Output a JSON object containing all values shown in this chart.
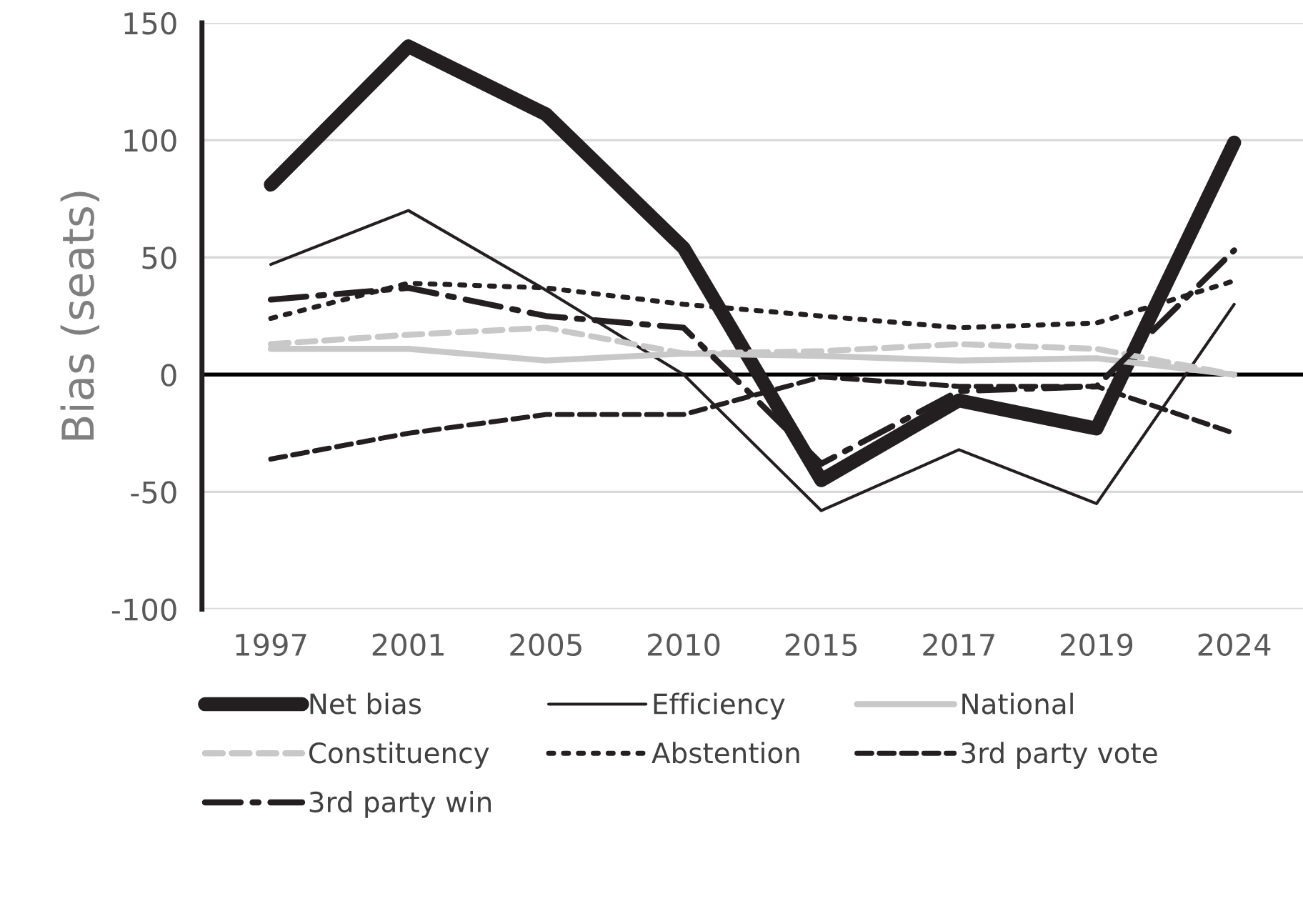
{
  "chart_data": {
    "type": "line",
    "ylabel": "Bias (seats)",
    "categories": [
      "1997",
      "2001",
      "2005",
      "2010",
      "2015",
      "2017",
      "2019",
      "2024"
    ],
    "ylim": [
      -100,
      150
    ],
    "yticks": [
      -100,
      -50,
      0,
      50,
      100,
      150
    ],
    "grid": "y",
    "legend": "bottom",
    "marker": "none",
    "ref_lines": [
      {
        "axis": "y",
        "value": 0,
        "color": "#000000"
      }
    ],
    "series": [
      {
        "name": "Net bias",
        "color": "#231f20",
        "line_style": "solid",
        "values": [
          81,
          140,
          111,
          54,
          -45,
          -11,
          -23,
          99
        ]
      },
      {
        "name": "Efficiency",
        "color": "#231f20",
        "line_style": "solid",
        "values": [
          47,
          70,
          36,
          0,
          -58,
          -32,
          -55,
          30
        ]
      },
      {
        "name": "National",
        "color": "#c8c8c8",
        "line_style": "solid",
        "values": [
          11,
          11,
          6,
          9,
          8,
          6,
          7,
          0
        ]
      },
      {
        "name": "Constituency",
        "color": "#c8c8c8",
        "line_style": "dashed",
        "values": [
          13,
          17,
          20,
          9,
          10,
          13,
          11,
          0
        ]
      },
      {
        "name": "Abstention",
        "color": "#231f20",
        "line_style": "dotted",
        "values": [
          24,
          39,
          37,
          30,
          25,
          20,
          22,
          40
        ]
      },
      {
        "name": "3rd party vote",
        "color": "#231f20",
        "line_style": "dashed",
        "values": [
          -36,
          -25,
          -17,
          -17,
          -1,
          -5,
          -5,
          -25
        ]
      },
      {
        "name": "3rd party win",
        "color": "#231f20",
        "line_style": "dashdot",
        "values": [
          32,
          37,
          25,
          20,
          -38,
          -7,
          -5,
          53
        ]
      }
    ]
  }
}
